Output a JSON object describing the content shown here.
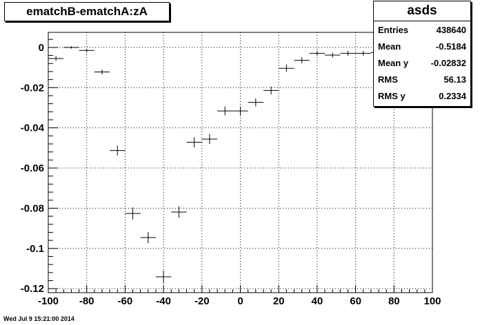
{
  "chart_data": {
    "type": "scatter",
    "title": "ematchB-ematchA:zA",
    "xlim": [
      -100,
      100
    ],
    "ylim": [
      -0.122,
      0.0075
    ],
    "x_ticks": [
      -100,
      -80,
      -60,
      -40,
      -20,
      0,
      20,
      40,
      60,
      80,
      100
    ],
    "y_ticks": [
      0,
      -0.02,
      -0.04,
      -0.06,
      -0.08,
      -0.1,
      -0.12
    ],
    "x_tick_labels": [
      "-100",
      "-80",
      "-60",
      "-40",
      "-20",
      "0",
      "20",
      "40",
      "60",
      "80",
      "100"
    ],
    "y_tick_labels": [
      "0",
      "-0.02",
      "-0.04",
      "-0.06",
      "-0.08",
      "-0.1",
      "-0.12"
    ],
    "grid": true,
    "bin_half_width": 4,
    "points": [
      {
        "x": -96,
        "y": -0.0055,
        "ey": 0.0012
      },
      {
        "x": -88,
        "y": 0.0,
        "ey": 0.0006
      },
      {
        "x": -80,
        "y": -0.0015,
        "ey": 0.0008
      },
      {
        "x": -72,
        "y": -0.0122,
        "ey": 0.0012
      },
      {
        "x": -64,
        "y": -0.0513,
        "ey": 0.0025
      },
      {
        "x": -56,
        "y": -0.0826,
        "ey": 0.003
      },
      {
        "x": -48,
        "y": -0.0946,
        "ey": 0.0028
      },
      {
        "x": -40,
        "y": -0.1141,
        "ey": 0.003
      },
      {
        "x": -32,
        "y": -0.0819,
        "ey": 0.0028
      },
      {
        "x": -24,
        "y": -0.0472,
        "ey": 0.0025
      },
      {
        "x": -16,
        "y": -0.0456,
        "ey": 0.0025
      },
      {
        "x": -8,
        "y": -0.0316,
        "ey": 0.0022
      },
      {
        "x": 0,
        "y": -0.0316,
        "ey": 0.0022
      },
      {
        "x": 8,
        "y": -0.0273,
        "ey": 0.002
      },
      {
        "x": 16,
        "y": -0.0214,
        "ey": 0.002
      },
      {
        "x": 24,
        "y": -0.0104,
        "ey": 0.0018
      },
      {
        "x": 32,
        "y": -0.0064,
        "ey": 0.0015
      },
      {
        "x": 40,
        "y": -0.0029,
        "ey": 0.0012
      },
      {
        "x": 48,
        "y": -0.0038,
        "ey": 0.0012
      },
      {
        "x": 56,
        "y": -0.0029,
        "ey": 0.0012
      },
      {
        "x": 64,
        "y": -0.0029,
        "ey": 0.0012
      },
      {
        "x": 72,
        "y": -0.0025,
        "ey": 0.0012
      }
    ]
  },
  "stats": {
    "title": "asds",
    "rows": [
      {
        "label": "Entries",
        "value": "438640"
      },
      {
        "label": "Mean",
        "value": "-0.5184"
      },
      {
        "label": "Mean y",
        "value": "-0.02832"
      },
      {
        "label": "RMS",
        "value": "56.13"
      },
      {
        "label": "RMS y",
        "value": "0.2334"
      }
    ]
  },
  "footer": {
    "timestamp": "Wed Jul  9 15:21:00 2014"
  }
}
